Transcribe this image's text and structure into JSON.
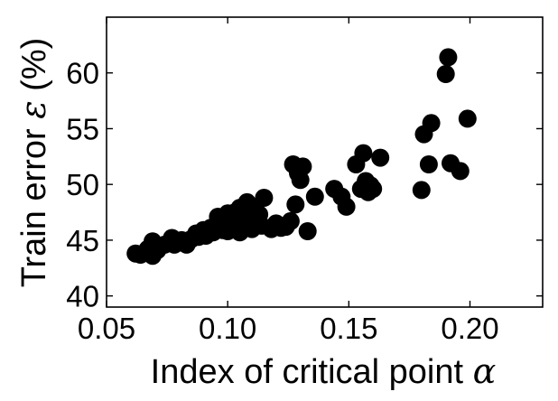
{
  "chart_data": {
    "type": "scatter",
    "title": "",
    "xlabel": "Index of critical point",
    "xlabel_symbol": "α",
    "ylabel_prefix": "Train error",
    "ylabel_symbol": "ε",
    "ylabel_suffix": "(%)",
    "xlim": [
      0.05,
      0.23
    ],
    "ylim": [
      39,
      65
    ],
    "xticks": [
      0.05,
      0.1,
      0.15,
      0.2
    ],
    "xtick_labels": [
      "0.05",
      "0.10",
      "0.15",
      "0.20"
    ],
    "yticks": [
      40,
      45,
      50,
      55,
      60
    ],
    "ytick_labels": [
      "40",
      "45",
      "50",
      "55",
      "60"
    ],
    "grid": false,
    "marker_color": "#000000",
    "points": [
      [
        0.062,
        43.8
      ],
      [
        0.064,
        43.7
      ],
      [
        0.067,
        44.2
      ],
      [
        0.069,
        44.9
      ],
      [
        0.069,
        43.6
      ],
      [
        0.071,
        44.1
      ],
      [
        0.074,
        44.6
      ],
      [
        0.077,
        45.2
      ],
      [
        0.078,
        44.6
      ],
      [
        0.081,
        45.0
      ],
      [
        0.083,
        44.6
      ],
      [
        0.085,
        45.1
      ],
      [
        0.087,
        45.6
      ],
      [
        0.088,
        45.3
      ],
      [
        0.09,
        45.9
      ],
      [
        0.091,
        45.4
      ],
      [
        0.093,
        46.1
      ],
      [
        0.094,
        45.7
      ],
      [
        0.095,
        46.3
      ],
      [
        0.096,
        47.1
      ],
      [
        0.097,
        46.4
      ],
      [
        0.098,
        45.9
      ],
      [
        0.099,
        46.7
      ],
      [
        0.1,
        47.4
      ],
      [
        0.1,
        45.8
      ],
      [
        0.101,
        46.9
      ],
      [
        0.102,
        46.1
      ],
      [
        0.103,
        47.5
      ],
      [
        0.104,
        46.6
      ],
      [
        0.105,
        47.9
      ],
      [
        0.105,
        45.7
      ],
      [
        0.106,
        47.0
      ],
      [
        0.107,
        46.3
      ],
      [
        0.108,
        48.4
      ],
      [
        0.109,
        47.2
      ],
      [
        0.11,
        46.0
      ],
      [
        0.11,
        47.7
      ],
      [
        0.112,
        46.6
      ],
      [
        0.113,
        47.3
      ],
      [
        0.114,
        46.3
      ],
      [
        0.115,
        48.8
      ],
      [
        0.118,
        46.0
      ],
      [
        0.12,
        46.5
      ],
      [
        0.122,
        46.1
      ],
      [
        0.124,
        46.2
      ],
      [
        0.126,
        46.7
      ],
      [
        0.127,
        51.8
      ],
      [
        0.128,
        48.2
      ],
      [
        0.129,
        51.0
      ],
      [
        0.13,
        50.4
      ],
      [
        0.131,
        51.6
      ],
      [
        0.133,
        45.8
      ],
      [
        0.136,
        48.9
      ],
      [
        0.144,
        49.6
      ],
      [
        0.147,
        48.9
      ],
      [
        0.149,
        48.0
      ],
      [
        0.153,
        51.8
      ],
      [
        0.155,
        49.6
      ],
      [
        0.156,
        52.8
      ],
      [
        0.157,
        50.3
      ],
      [
        0.158,
        49.3
      ],
      [
        0.159,
        49.9
      ],
      [
        0.16,
        49.6
      ],
      [
        0.163,
        52.4
      ],
      [
        0.18,
        49.5
      ],
      [
        0.181,
        54.5
      ],
      [
        0.183,
        51.8
      ],
      [
        0.184,
        55.5
      ],
      [
        0.19,
        59.9
      ],
      [
        0.191,
        61.4
      ],
      [
        0.192,
        51.9
      ],
      [
        0.196,
        51.2
      ],
      [
        0.199,
        55.9
      ]
    ]
  }
}
